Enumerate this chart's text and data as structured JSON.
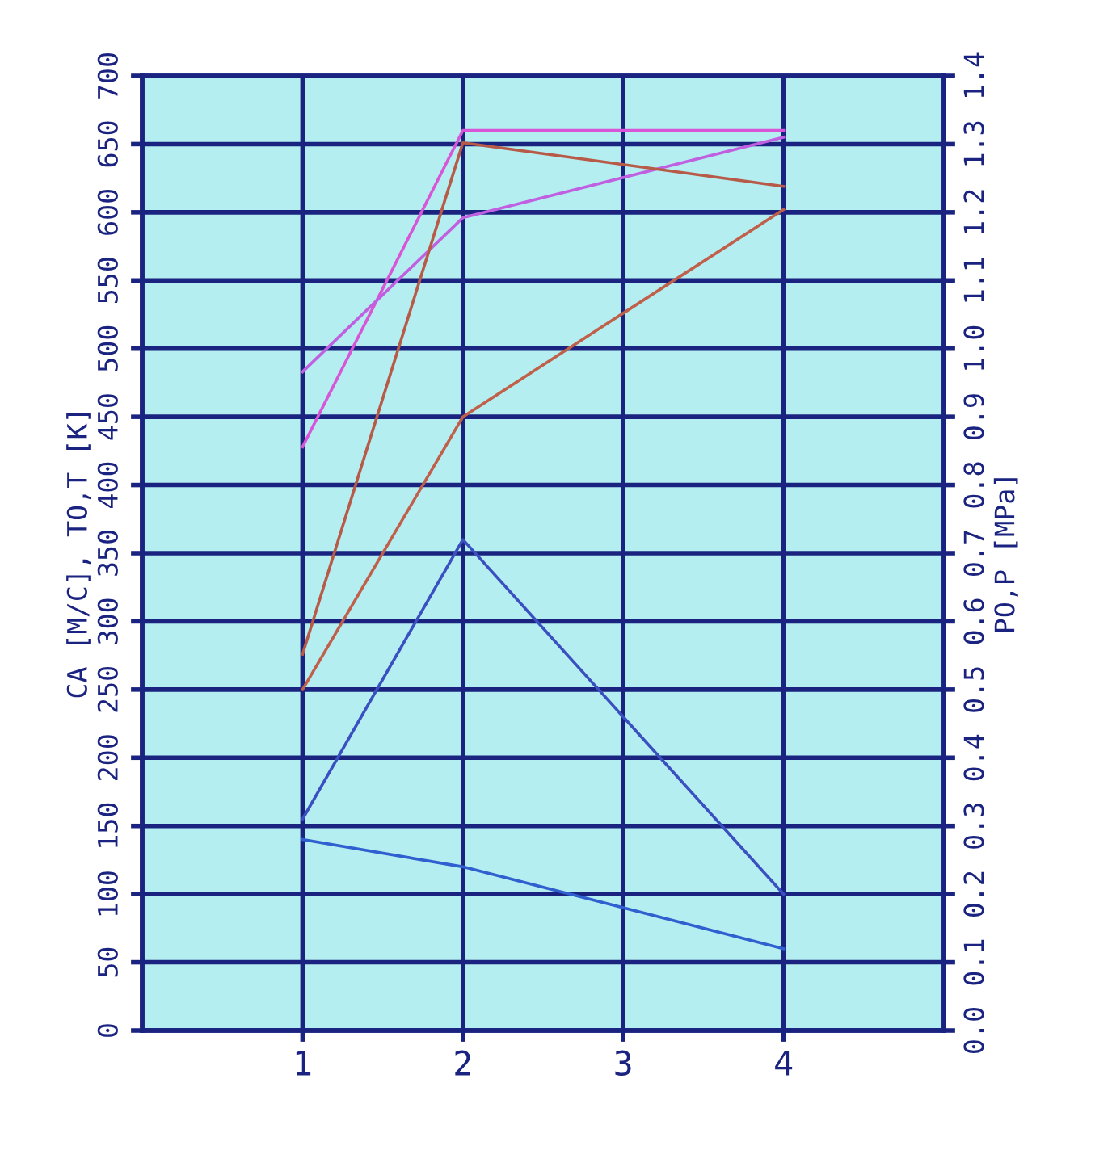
{
  "chart_data": {
    "type": "line",
    "ylabel": "CA [M/C], TO,T [K]",
    "y2label": "PO,P [MPa]",
    "x": [
      1,
      2,
      4
    ],
    "series": [
      {
        "color": "#d855d8",
        "values": [
          428,
          660,
          660
        ]
      },
      {
        "color": "#c060e0",
        "values": [
          483,
          596,
          655
        ]
      },
      {
        "color": "#b85a48",
        "values": [
          276,
          651,
          619
        ]
      },
      {
        "color": "#c0604a",
        "values": [
          250,
          450,
          602
        ]
      },
      {
        "color": "#3a50c0",
        "values": [
          155,
          360,
          100
        ]
      },
      {
        "color": "#3060d0",
        "values": [
          140,
          120,
          60
        ]
      }
    ],
    "xlim": [
      0,
      5
    ],
    "xticks": [
      1,
      2,
      3,
      4
    ],
    "ylim": [
      0,
      700
    ],
    "yticks": [
      0,
      50,
      100,
      150,
      200,
      250,
      300,
      350,
      400,
      450,
      500,
      550,
      600,
      650,
      700
    ],
    "y2lim": [
      0.0,
      1.4
    ],
    "y2ticks": [
      {
        "value": 0,
        "label": "0.0"
      },
      0.1,
      0.2,
      0.3,
      0.4,
      0.5,
      0.6,
      0.7,
      0.8,
      0.9,
      {
        "value": 1,
        "label": "1.0"
      },
      1.1,
      1.2,
      1.3,
      1.4
    ],
    "grid": true,
    "legend": false,
    "marker": "none",
    "line_style": "solid"
  }
}
